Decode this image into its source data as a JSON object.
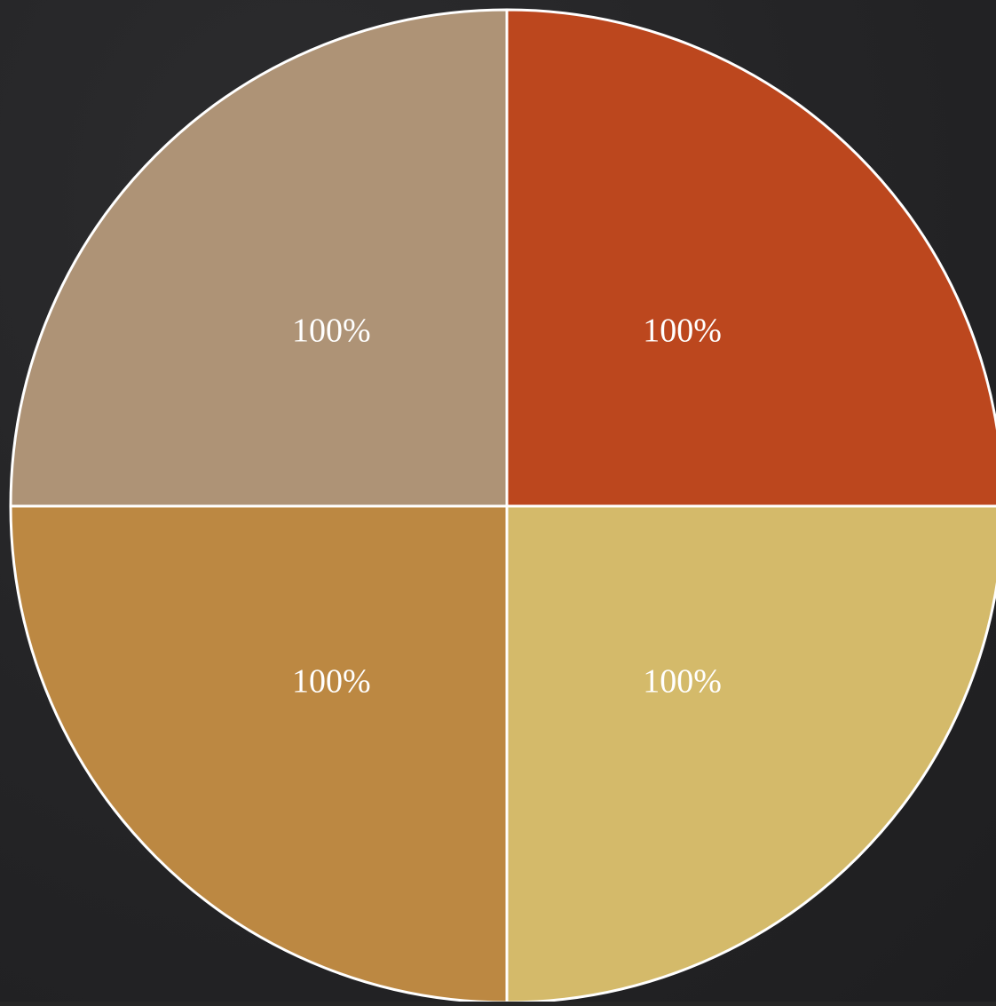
{
  "chart_data": {
    "type": "pie",
    "title": "",
    "slices": [
      {
        "value": 25,
        "label": "100%",
        "color": "#BC471E"
      },
      {
        "value": 25,
        "label": "100%",
        "color": "#D4BA6A"
      },
      {
        "value": 25,
        "label": "100%",
        "color": "#BC8842"
      },
      {
        "value": 25,
        "label": "100%",
        "color": "#AE9376"
      }
    ],
    "start_angle_deg": -90,
    "direction": "clockwise",
    "slice_border_color": "#FFFFFF",
    "legend": "none"
  },
  "colors": {
    "background": "#262626"
  }
}
